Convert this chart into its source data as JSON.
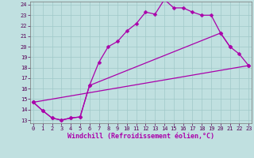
{
  "xlabel": "Windchill (Refroidissement éolien,°C)",
  "background_color": "#c0e0e0",
  "grid_color": "#9fc8c8",
  "line_color": "#aa00aa",
  "xlim_min": 0,
  "xlim_max": 23,
  "ylim_min": 13,
  "ylim_max": 24,
  "xticks": [
    0,
    1,
    2,
    3,
    4,
    5,
    6,
    7,
    8,
    9,
    10,
    11,
    12,
    13,
    14,
    15,
    16,
    17,
    18,
    19,
    20,
    21,
    22,
    23
  ],
  "yticks": [
    13,
    14,
    15,
    16,
    17,
    18,
    19,
    20,
    21,
    22,
    23,
    24
  ],
  "line1_x": [
    0,
    1,
    2,
    3,
    4,
    5,
    6,
    7,
    8,
    9,
    10,
    11,
    12,
    13,
    14,
    15,
    16,
    17,
    18,
    19,
    20,
    21
  ],
  "line1_y": [
    14.7,
    13.9,
    13.2,
    13.0,
    13.2,
    13.3,
    16.3,
    18.5,
    20.0,
    20.5,
    21.5,
    22.2,
    23.3,
    23.1,
    24.5,
    23.7,
    23.7,
    23.3,
    23.0,
    23.0,
    21.3,
    20.0
  ],
  "line2_x": [
    0,
    1,
    2,
    3,
    4,
    5,
    6,
    20,
    21,
    22,
    23
  ],
  "line2_y": [
    14.7,
    13.9,
    13.2,
    13.0,
    13.2,
    13.3,
    16.3,
    21.3,
    20.0,
    19.3,
    18.2
  ],
  "line3_x": [
    0,
    23
  ],
  "line3_y": [
    14.7,
    18.2
  ],
  "markersize": 2.5,
  "linewidth": 0.9,
  "tick_fontsize": 5.0,
  "label_fontsize": 6.0
}
